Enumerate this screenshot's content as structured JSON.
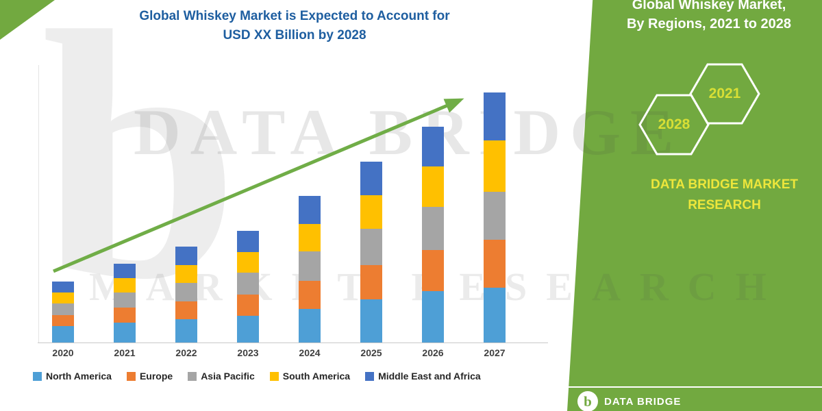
{
  "header": {
    "chart_title_line1": "Global Whiskey Market is Expected to Account for",
    "chart_title_line2": "USD XX Billion by 2028"
  },
  "watermark": {
    "line1": "DATA BRIDGE",
    "line2": "MARKET RESEARCH",
    "logo_glyph": "b"
  },
  "side_panel": {
    "title_line1": "Global Whiskey Market,",
    "title_line2": "By Regions, 2021 to 2028",
    "hex_year_left": "2028",
    "hex_year_right": "2021",
    "brand_line1": "DATA BRIDGE MARKET",
    "brand_line2": "RESEARCH",
    "footer_brand": "DATA BRIDGE",
    "footer_logo_glyph": "b",
    "colors": {
      "panel_green": "#72A940",
      "year_text": "#D8DF35",
      "brand_yellow": "#EDE63B",
      "hex_outline": "#FFFFFF"
    }
  },
  "chart_data": {
    "type": "bar",
    "stacked": true,
    "title": "Global Whiskey Market is Expected to Account for USD XX Billion by 2028",
    "units": "USD Billion (values shown as XX, estimated relative heights)",
    "categories": [
      "2020",
      "2021",
      "2022",
      "2023",
      "2024",
      "2025",
      "2026",
      "2027"
    ],
    "series": [
      {
        "name": "North America",
        "color": "#4E9FD6",
        "values": [
          2.4,
          2.9,
          3.4,
          3.9,
          4.9,
          6.3,
          7.5,
          8.0
        ]
      },
      {
        "name": "Europe",
        "color": "#ED7D31",
        "values": [
          1.6,
          2.2,
          2.6,
          3.1,
          4.1,
          5.0,
          6.0,
          7.0
        ]
      },
      {
        "name": "Asia Pacific",
        "color": "#A5A5A5",
        "values": [
          1.7,
          2.2,
          2.7,
          3.2,
          4.3,
          5.3,
          6.3,
          7.0
        ]
      },
      {
        "name": "South America",
        "color": "#FFC000",
        "values": [
          1.6,
          2.1,
          2.6,
          3.0,
          4.0,
          4.9,
          5.9,
          7.5
        ]
      },
      {
        "name": "Middle East and Africa",
        "color": "#4472C4",
        "values": [
          1.6,
          2.1,
          2.7,
          3.1,
          4.1,
          4.9,
          5.8,
          7.0
        ]
      }
    ],
    "totals": [
      8.9,
      11.5,
      14.0,
      16.3,
      21.4,
      26.4,
      31.5,
      36.5
    ],
    "xlabel": "",
    "ylabel": "",
    "grid": false,
    "legend_position": "bottom",
    "trend_arrow": true,
    "arrow_color": "#70AD47"
  }
}
